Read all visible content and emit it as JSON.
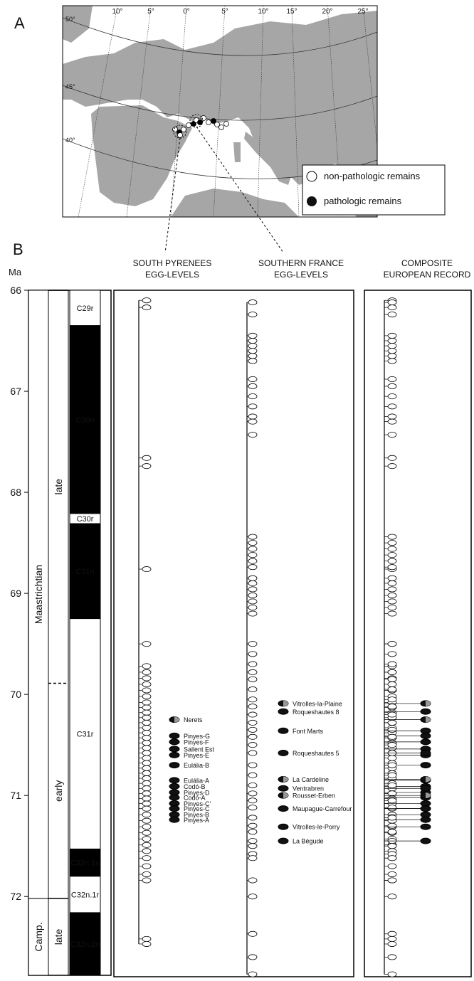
{
  "panel_a": {
    "label": "A",
    "map": {
      "latitude_labels": [
        "50°",
        "45°",
        "40°"
      ],
      "longitude_labels": [
        "10°",
        "5°",
        "0°",
        "5°",
        "10°",
        "15°",
        "20°",
        "25°"
      ]
    },
    "legend": [
      "non-pathologic remains",
      "pathologic remains"
    ]
  },
  "panel_b": {
    "label": "B",
    "axis_title": "Ma",
    "age_lim": [
      66,
      72.78
    ],
    "age_ticks": [
      66,
      67,
      68,
      69,
      70,
      71,
      72
    ],
    "stages": [
      {
        "name": "Maastrichtian",
        "top": 66,
        "base": 72.02
      },
      {
        "name": "Camp.",
        "top": 72.02,
        "base": 72.78
      }
    ],
    "substages": [
      {
        "name": "late",
        "top": 66,
        "base": 69.89
      },
      {
        "name": "early",
        "top": 69.89,
        "base": 72.02
      },
      {
        "name": "late",
        "top": 72.02,
        "base": 72.78
      }
    ],
    "chrons": [
      {
        "name": "C29r",
        "top": 66,
        "base": 66.35,
        "polarity": "reversed"
      },
      {
        "name": "C30n",
        "top": 66.35,
        "base": 68.21,
        "polarity": "normal"
      },
      {
        "name": "C30r",
        "top": 68.21,
        "base": 68.31,
        "polarity": "reversed"
      },
      {
        "name": "C31n",
        "top": 68.31,
        "base": 69.25,
        "polarity": "normal"
      },
      {
        "name": "C31r",
        "top": 69.25,
        "base": 71.53,
        "polarity": "reversed"
      },
      {
        "name": "C32n.1n",
        "top": 71.53,
        "base": 71.8,
        "polarity": "normal"
      },
      {
        "name": "C32n.1r",
        "top": 71.8,
        "base": 72.16,
        "polarity": "reversed"
      },
      {
        "name": "C32n.2n",
        "top": 72.16,
        "base": 72.78,
        "polarity": "normal"
      }
    ],
    "columns": [
      {
        "title": [
          "SOUTH PYRENEES",
          "EGG-LEVELS"
        ],
        "egg_levels": [
          66.1,
          66.17,
          67.66,
          67.74,
          68.76,
          69.5,
          69.72,
          69.78,
          69.84,
          69.9,
          69.96,
          70.02,
          70.08,
          70.13,
          70.18,
          70.23,
          70.28,
          70.33,
          70.38,
          70.43,
          70.48,
          70.53,
          70.58,
          70.63,
          70.68,
          70.73,
          70.78,
          70.83,
          70.88,
          70.93,
          70.98,
          71.03,
          71.08,
          71.13,
          71.19,
          71.25,
          71.31,
          71.37,
          71.43,
          71.49,
          71.55,
          71.62,
          71.7,
          71.78,
          71.84,
          72.42,
          72.47
        ],
        "pathologic": [
          {
            "name": "Nerets",
            "age": 70.25,
            "style": "mixed"
          },
          {
            "name": "Pinyes-G",
            "age": 70.41,
            "style": "full"
          },
          {
            "name": "Pinyes-F",
            "age": 70.47,
            "style": "full"
          },
          {
            "name": "Sallent Est",
            "age": 70.54,
            "style": "full"
          },
          {
            "name": "Pinyes-E",
            "age": 70.6,
            "style": "full"
          },
          {
            "name": "Eulália-B",
            "age": 70.7,
            "style": "full"
          },
          {
            "name": "Eulália-A",
            "age": 70.85,
            "style": "full"
          },
          {
            "name": "Codó-B",
            "age": 70.91,
            "style": "full"
          },
          {
            "name": "Pinyes-D",
            "age": 70.97,
            "style": "full"
          },
          {
            "name": "Codó-A",
            "age": 71.02,
            "style": "full"
          },
          {
            "name": "Pinyes-C'",
            "age": 71.08,
            "style": "full"
          },
          {
            "name": "Pinyes-C",
            "age": 71.13,
            "style": "full"
          },
          {
            "name": "Pinyes-B",
            "age": 71.19,
            "style": "full"
          },
          {
            "name": "Pinyes-A",
            "age": 71.24,
            "style": "full"
          }
        ]
      },
      {
        "title": [
          "SOUTHERN FRANCE",
          "EGG-LEVELS"
        ],
        "egg_levels": [
          66.12,
          66.24,
          66.45,
          66.5,
          66.55,
          66.6,
          66.65,
          66.7,
          66.88,
          66.95,
          67.05,
          67.15,
          67.25,
          67.3,
          67.43,
          68.44,
          68.5,
          68.56,
          68.62,
          68.68,
          68.74,
          68.85,
          68.9,
          68.96,
          69.02,
          69.08,
          69.14,
          69.2,
          69.5,
          69.6,
          69.7,
          69.78,
          69.85,
          69.95,
          70.05,
          70.12,
          70.2,
          70.28,
          70.35,
          70.42,
          70.5,
          70.58,
          70.7,
          70.8,
          70.9,
          70.98,
          71.05,
          71.12,
          71.22,
          71.3,
          71.36,
          71.45,
          71.5,
          71.58,
          71.62,
          71.84,
          72.0,
          72.37,
          72.6,
          72.77
        ],
        "pathologic": [
          {
            "name": "Vitrolles-la-Plaine",
            "age": 70.09,
            "style": "mixed"
          },
          {
            "name": "Roqueshautes 8",
            "age": 70.17,
            "style": "full"
          },
          {
            "name": "Font Marts",
            "age": 70.36,
            "style": "full"
          },
          {
            "name": "Roqueshautes 5",
            "age": 70.58,
            "style": "full"
          },
          {
            "name": "La Cardeline",
            "age": 70.84,
            "style": "mixed"
          },
          {
            "name": "Ventrabren",
            "age": 70.93,
            "style": "full"
          },
          {
            "name": "Rousset-Erben",
            "age": 71.0,
            "style": "mixed"
          },
          {
            "name": "Maupague-Carrefour",
            "age": 71.13,
            "style": "full"
          },
          {
            "name": "Vitrolles-le-Porry",
            "age": 71.31,
            "style": "full"
          },
          {
            "name": "La Bégude",
            "age": 71.45,
            "style": "full"
          }
        ]
      },
      {
        "title": [
          "COMPOSITE",
          "EUROPEAN RECORD"
        ],
        "composite": true
      }
    ]
  }
}
